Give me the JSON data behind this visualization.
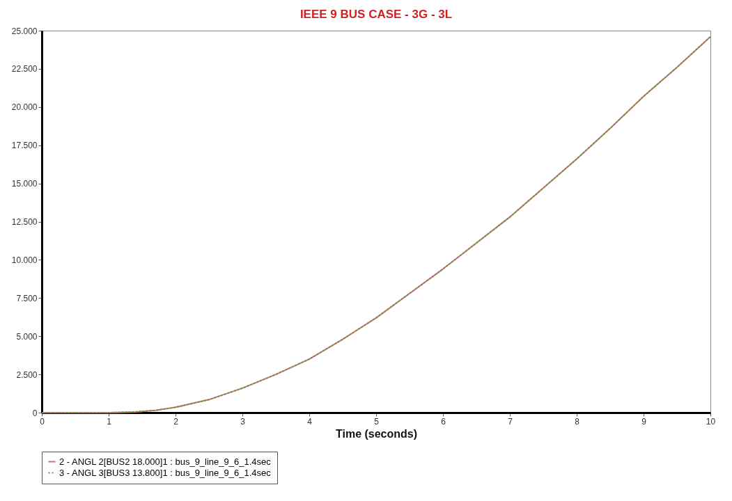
{
  "chart_data": {
    "type": "line",
    "title": "IEEE 9 BUS CASE - 3G - 3L",
    "xlabel": "Time (seconds)",
    "x": [
      0,
      0.5,
      1,
      1.2,
      1.4,
      1.7,
      2,
      2.5,
      3,
      3.5,
      4,
      4.5,
      5,
      5.5,
      6,
      6.5,
      7,
      7.5,
      8,
      8.5,
      9,
      9.5,
      10
    ],
    "series": [
      {
        "name": "2 - ANGL 2[BUS2 18.000]1 : bus_9_line_9_6_1.4sec",
        "color": "#c87070",
        "line_style": "solid",
        "values": [
          0,
          0,
          0,
          0.02,
          0.05,
          0.15,
          0.35,
          0.85,
          1.6,
          2.5,
          3.5,
          4.8,
          6.2,
          7.8,
          9.4,
          11.1,
          12.8,
          14.7,
          16.6,
          18.6,
          20.7,
          22.6,
          24.6
        ]
      },
      {
        "name": "3 - ANGL 3[BUS3 13.800]1 : bus_9_line_9_6_1.4sec",
        "color": "#5a9a3c",
        "line_style": "dotted",
        "values": [
          0,
          0,
          0,
          0.02,
          0.05,
          0.15,
          0.35,
          0.85,
          1.6,
          2.5,
          3.5,
          4.8,
          6.2,
          7.8,
          9.4,
          11.1,
          12.8,
          14.7,
          16.6,
          18.6,
          20.7,
          22.6,
          24.6
        ]
      }
    ],
    "xlim": [
      0,
      10
    ],
    "xticks": [
      0,
      1,
      2,
      3,
      4,
      5,
      6,
      7,
      8,
      9,
      10
    ],
    "ylim": [
      0,
      25
    ],
    "yticks": [
      0,
      {
        "value": 2.5,
        "label": "2.500"
      },
      {
        "value": 5,
        "label": "5.000"
      },
      {
        "value": 7.5,
        "label": "7.500"
      },
      {
        "value": 10,
        "label": "10.000"
      },
      {
        "value": 12.5,
        "label": "12.500"
      },
      {
        "value": 15,
        "label": "15.000"
      },
      {
        "value": 17.5,
        "label": "17.500"
      },
      {
        "value": 20,
        "label": "20.000"
      },
      {
        "value": 22.5,
        "label": "22.500"
      },
      {
        "value": 25,
        "label": "25.000"
      }
    ],
    "grid": false,
    "legend": "bottom",
    "marker": "none"
  }
}
